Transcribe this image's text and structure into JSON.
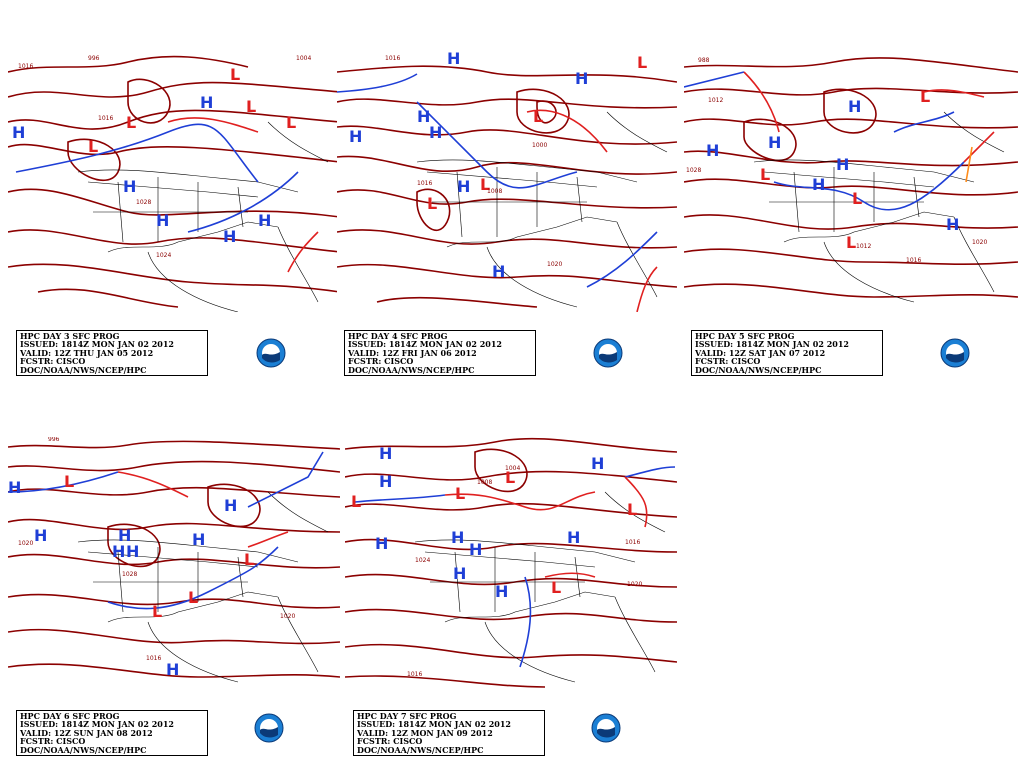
{
  "panels": [
    {
      "id": "day3",
      "caption": [
        "HPC DAY 3 SFC PROG",
        "ISSUED: 1814Z MON JAN 02 2012",
        "VALID: 12Z THU JAN 05 2012",
        "FCSTR: CISCO",
        "DOC/NOAA/NWS/NCEP/HPC"
      ],
      "isobar_labels": [
        "1024",
        "1028",
        "1016",
        "1016",
        "1004",
        "996"
      ],
      "highs": 6,
      "lows": 5
    },
    {
      "id": "day4",
      "caption": [
        "HPC DAY 4 SFC PROG",
        "ISSUED: 1814Z MON JAN 02 2012",
        "VALID: 12Z FRI JAN 06 2012",
        "FCSTR: CISCO",
        "DOC/NOAA/NWS/NCEP/HPC"
      ],
      "isobar_labels": [
        "1016",
        "1020",
        "1008",
        "1000",
        "1016"
      ],
      "highs": 7,
      "lows": 4
    },
    {
      "id": "day5",
      "caption": [
        "HPC DAY 5 SFC PROG",
        "ISSUED: 1814Z MON JAN 02 2012",
        "VALID: 12Z SAT JAN 07 2012",
        "FCSTR: CISCO",
        "DOC/NOAA/NWS/NCEP/HPC"
      ],
      "isobar_labels": [
        "1028",
        "1012",
        "1016",
        "1020",
        "1012",
        "988"
      ],
      "highs": 6,
      "lows": 4
    },
    {
      "id": "day6",
      "caption": [
        "HPC DAY 6 SFC PROG",
        "ISSUED: 1814Z MON JAN 02 2012",
        "VALID: 12Z SUN JAN 08 2012",
        "FCSTR: CISCO",
        "DOC/NOAA/NWS/NCEP/HPC"
      ],
      "isobar_labels": [
        "1020",
        "1016",
        "1028",
        "1020",
        "996"
      ],
      "highs": 7,
      "lows": 4
    },
    {
      "id": "day7",
      "caption": [
        "HPC DAY 7 SFC PROG",
        "ISSUED: 1814Z MON JAN 02 2012",
        "VALID: 12Z MON JAN 09 2012",
        "FCSTR: CISCO",
        "DOC/NOAA/NWS/NCEP/HPC"
      ],
      "isobar_labels": [
        "1016",
        "1016",
        "1020",
        "1004",
        "1024",
        "1008"
      ],
      "highs": 9,
      "lows": 5
    }
  ],
  "symbols": {
    "high": "H",
    "low": "L"
  },
  "logo_text": "NOAA",
  "colors": {
    "isobar": "#8b0000",
    "high": "#1f3fd6",
    "low": "#e02020",
    "cold_front": "#1f3fd6",
    "warm_front": "#e02020",
    "occluded": "#9b30d0",
    "trough": "#ff8c1a",
    "map_lines": "#000000"
  }
}
